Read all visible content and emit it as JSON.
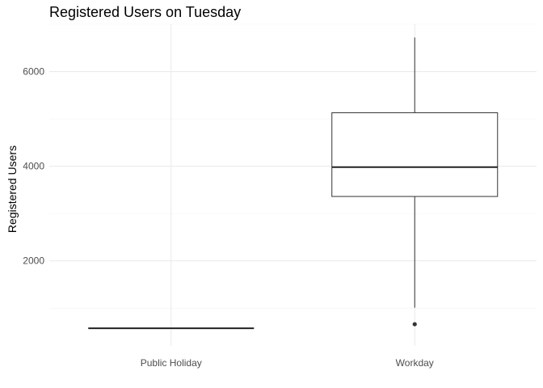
{
  "chart_data": {
    "type": "boxplot",
    "title": "Registered Users on Tuesday",
    "xlabel": "",
    "ylabel": "Registered Users",
    "categories": [
      "Public Holiday",
      "Workday"
    ],
    "y_ticks": [
      2000,
      4000,
      6000
    ],
    "y_tick_labels": [
      "2000",
      "4000",
      "6000"
    ],
    "ylim": [
      200,
      7000
    ],
    "grid": true,
    "boxes": [
      {
        "category": "Public Holiday",
        "min": 573,
        "q1": 573,
        "median": 573,
        "q3": 573,
        "max": 573,
        "outliers": []
      },
      {
        "category": "Workday",
        "min": 1010,
        "q1": 3360,
        "median": 3980,
        "q3": 5130,
        "max": 6720,
        "outliers": [
          660
        ]
      }
    ]
  }
}
